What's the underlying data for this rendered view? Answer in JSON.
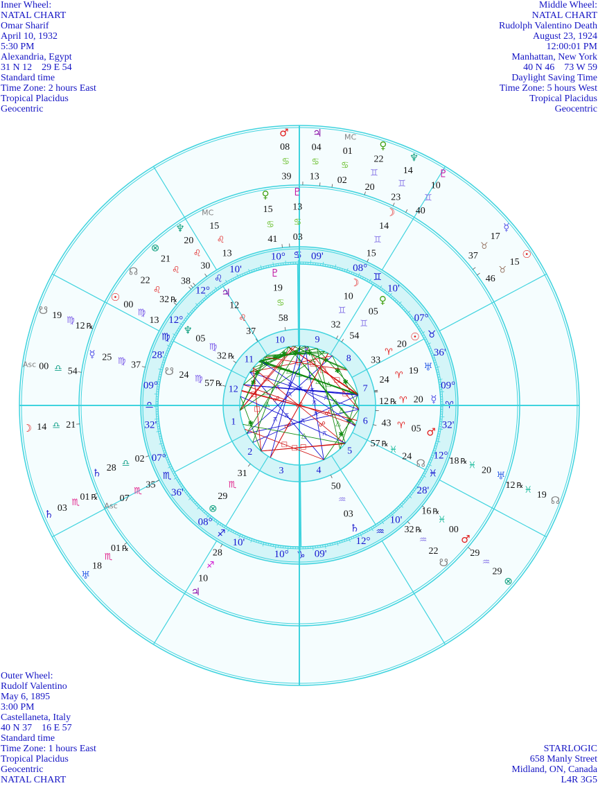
{
  "inner_info": [
    "Inner Wheel:",
    "NATAL CHART",
    "Omar Sharif",
    "April 10, 1932",
    "5:30 PM",
    "Alexandria, Egypt",
    "31 N 12    29 E 54",
    "Standard time",
    "Time Zone: 2 hours East",
    "Tropical Placidus",
    "Geocentric"
  ],
  "middle_info": [
    "Middle Wheel:",
    "NATAL CHART",
    "Rudolph Valentino Death",
    "August 23, 1924",
    "12:00:01 PM",
    "Manhattan, New York",
    "40 N 46    73 W 59",
    "Daylight Saving Time",
    "Time Zone: 5 hours West",
    "Tropical Placidus",
    "Geocentric"
  ],
  "outer_info": [
    "Outer Wheel:",
    "Rudolf Valentino",
    "May 6, 1895",
    "3:00 PM",
    "Castellaneta, Italy",
    "40 N 37    16 E 57",
    "Standard time",
    "Time Zone: 1 hours East",
    "Tropical Placidus",
    "Geocentric",
    "NATAL CHART"
  ],
  "publisher": [
    "STARLOGIC",
    "658 Manly Street",
    "Midland, ON, Canada",
    "L4R 3G5"
  ],
  "colors": {
    "line": "#3fd3de",
    "band": "#d4f5f8",
    "background": "#f5fdfe",
    "label": "#1414d0",
    "square": "#d01010",
    "trine": "#108a10",
    "quincunx": "#1010d0"
  },
  "signs": {
    "aries": {
      "glyph": "♈",
      "color": "#e01818"
    },
    "taurus": {
      "glyph": "♉",
      "color": "#9a7a6a"
    },
    "gemini": {
      "glyph": "♊",
      "color": "#8a7ae8"
    },
    "cancer": {
      "glyph": "♋",
      "color": "#6cc030"
    },
    "leo": {
      "glyph": "♌",
      "color": "#e02020"
    },
    "virgo": {
      "glyph": "♍",
      "color": "#7a5ae8"
    },
    "libra": {
      "glyph": "♎",
      "color": "#10a088"
    },
    "scorpio": {
      "glyph": "♏",
      "color": "#e0208a"
    },
    "sagittarius": {
      "glyph": "♐",
      "color": "#d010d0"
    },
    "capricorn": {
      "glyph": "♑",
      "color": "#1414d0"
    },
    "aquarius": {
      "glyph": "♒",
      "color": "#8a7ae8"
    },
    "pisces": {
      "glyph": "♓",
      "color": "#10b898"
    }
  },
  "sign_order": [
    "aries",
    "taurus",
    "gemini",
    "cancer",
    "leo",
    "virgo",
    "libra",
    "scorpio",
    "sagittarius",
    "capricorn",
    "aquarius",
    "pisces"
  ],
  "bodies": {
    "sun": {
      "glyph": "☉",
      "color": "#e01818"
    },
    "moon": {
      "glyph": "☽",
      "color": "#e01818"
    },
    "mercury": {
      "glyph": "☿",
      "color": "#5a5ae8"
    },
    "venus": {
      "glyph": "♀",
      "color": "#40a010"
    },
    "mars": {
      "glyph": "♂",
      "color": "#e01818"
    },
    "jupiter": {
      "glyph": "♃",
      "color": "#8a10a8"
    },
    "saturn": {
      "glyph": "♄",
      "color": "#2a2ad0"
    },
    "uranus": {
      "glyph": "♅",
      "color": "#3a6ae8"
    },
    "neptune": {
      "glyph": "♆",
      "color": "#10a080"
    },
    "pluto": {
      "glyph": "♇",
      "color": "#c010a0"
    },
    "north_node": {
      "glyph": "☊",
      "color": "#808080"
    },
    "south_node": {
      "glyph": "☋",
      "color": "#808080"
    },
    "fortune": {
      "glyph": "⊗",
      "color": "#10a080"
    },
    "mc": {
      "glyph": "MC",
      "color": "#808080"
    },
    "asc": {
      "glyph": "Asc",
      "color": "#808080"
    }
  },
  "house_cusps": [
    {
      "deg": "09°",
      "sign": "libra",
      "min": "32'"
    },
    {
      "deg": "07°",
      "sign": "scorpio",
      "min": "36'"
    },
    {
      "deg": "08°",
      "sign": "sagittarius",
      "min": "10'"
    },
    {
      "deg": "10°",
      "sign": "capricorn",
      "min": "09'"
    },
    {
      "deg": "12°",
      "sign": "aquarius",
      "min": "10'"
    },
    {
      "deg": "12°",
      "sign": "pisces",
      "min": "28'"
    },
    {
      "deg": "09°",
      "sign": "aries",
      "min": "32'"
    },
    {
      "deg": "07°",
      "sign": "taurus",
      "min": "36'"
    },
    {
      "deg": "08°",
      "sign": "gemini",
      "min": "10'"
    },
    {
      "deg": "10°",
      "sign": "cancer",
      "min": "09'"
    },
    {
      "deg": "12°",
      "sign": "leo",
      "min": "10'"
    },
    {
      "deg": "12°",
      "sign": "virgo",
      "min": "28'"
    }
  ],
  "house_numbers": [
    "1",
    "2",
    "3",
    "4",
    "5",
    "6",
    "7",
    "8",
    "9",
    "10",
    "11",
    "12"
  ],
  "wheels": {
    "inner": [
      {
        "body": "sun",
        "deg": "20",
        "sign": "aries",
        "min": "33",
        "retro": ""
      },
      {
        "body": "moon",
        "deg": "10",
        "sign": "gemini",
        "min": "32",
        "retro": ""
      },
      {
        "body": "mercury",
        "deg": "20",
        "sign": "aries",
        "min": "12",
        "retro": "℞"
      },
      {
        "body": "venus",
        "deg": "05",
        "sign": "gemini",
        "min": "54",
        "retro": ""
      },
      {
        "body": "mars",
        "deg": "05",
        "sign": "aries",
        "min": "43",
        "retro": ""
      },
      {
        "body": "jupiter",
        "deg": "12",
        "sign": "leo",
        "min": "37",
        "retro": ""
      },
      {
        "body": "saturn",
        "deg": "03",
        "sign": "aquarius",
        "min": "50",
        "retro": ""
      },
      {
        "body": "uranus",
        "deg": "19",
        "sign": "aries",
        "min": "24",
        "retro": ""
      },
      {
        "body": "neptune",
        "deg": "05",
        "sign": "virgo",
        "min": "32",
        "retro": "℞"
      },
      {
        "body": "pluto",
        "deg": "19",
        "sign": "cancer",
        "min": "58",
        "retro": ""
      },
      {
        "body": "north_node",
        "deg": "24",
        "sign": "pisces",
        "min": "57",
        "retro": "℞"
      },
      {
        "body": "south_node",
        "deg": "24",
        "sign": "virgo",
        "min": "57",
        "retro": "℞"
      },
      {
        "body": "fortune",
        "deg": "29",
        "sign": "scorpio",
        "min": "31",
        "retro": ""
      }
    ],
    "middle": [
      {
        "body": "sun",
        "deg": "00",
        "sign": "virgo",
        "min": "13",
        "retro": ""
      },
      {
        "body": "moon",
        "deg": "14",
        "sign": "gemini",
        "min": "15",
        "retro": ""
      },
      {
        "body": "mercury",
        "deg": "25",
        "sign": "virgo",
        "min": "37",
        "retro": ""
      },
      {
        "body": "venus",
        "deg": "15",
        "sign": "cancer",
        "min": "41",
        "retro": ""
      },
      {
        "body": "mars",
        "deg": "00",
        "sign": "pisces",
        "min": "16",
        "retro": "℞"
      },
      {
        "body": "jupiter",
        "deg": "10",
        "sign": "sagittarius",
        "min": "28",
        "retro": ""
      },
      {
        "body": "saturn",
        "deg": "28",
        "sign": "libra",
        "min": "02",
        "retro": ""
      },
      {
        "body": "uranus",
        "deg": "20",
        "sign": "pisces",
        "min": "18",
        "retro": "℞"
      },
      {
        "body": "neptune",
        "deg": "20",
        "sign": "leo",
        "min": "30",
        "retro": ""
      },
      {
        "body": "pluto",
        "deg": "13",
        "sign": "cancer",
        "min": "03",
        "retro": ""
      },
      {
        "body": "north_node",
        "deg": "22",
        "sign": "leo",
        "min": "32",
        "retro": "℞"
      },
      {
        "body": "south_node",
        "deg": "22",
        "sign": "aquarius",
        "min": "32",
        "retro": "℞"
      },
      {
        "body": "fortune",
        "deg": "21",
        "sign": "leo",
        "min": "38",
        "retro": ""
      },
      {
        "body": "mc",
        "deg": "15",
        "sign": "leo",
        "min": "13",
        "retro": ""
      },
      {
        "body": "asc",
        "deg": "07",
        "sign": "scorpio",
        "min": "35",
        "retro": ""
      }
    ],
    "outer": [
      {
        "body": "sun",
        "deg": "15",
        "sign": "taurus",
        "min": "46",
        "retro": ""
      },
      {
        "body": "moon",
        "deg": "14",
        "sign": "libra",
        "min": "21",
        "retro": ""
      },
      {
        "body": "mercury",
        "deg": "17",
        "sign": "taurus",
        "min": "37",
        "retro": ""
      },
      {
        "body": "venus",
        "deg": "22",
        "sign": "gemini",
        "min": "20",
        "retro": ""
      },
      {
        "body": "mars",
        "deg": "08",
        "sign": "cancer",
        "min": "39",
        "retro": ""
      },
      {
        "body": "jupiter",
        "deg": "04",
        "sign": "cancer",
        "min": "13",
        "retro": ""
      },
      {
        "body": "saturn",
        "deg": "03",
        "sign": "scorpio",
        "min": "01",
        "retro": "℞"
      },
      {
        "body": "uranus",
        "deg": "18",
        "sign": "scorpio",
        "min": "01",
        "retro": "℞"
      },
      {
        "body": "neptune",
        "deg": "14",
        "sign": "gemini",
        "min": "23",
        "retro": ""
      },
      {
        "body": "pluto",
        "deg": "10",
        "sign": "gemini",
        "min": "40",
        "retro": ""
      },
      {
        "body": "north_node",
        "deg": "19",
        "sign": "pisces",
        "min": "12",
        "retro": "℞"
      },
      {
        "body": "south_node",
        "deg": "19",
        "sign": "virgo",
        "min": "12",
        "retro": "℞"
      },
      {
        "body": "fortune",
        "deg": "29",
        "sign": "aquarius",
        "min": "29",
        "retro": ""
      },
      {
        "body": "mc",
        "deg": "01",
        "sign": "cancer",
        "min": "02",
        "retro": ""
      },
      {
        "body": "asc",
        "deg": "00",
        "sign": "libra",
        "min": "54",
        "retro": ""
      }
    ]
  },
  "aspect_markers": {
    "square": "□",
    "trine": "△",
    "sextile": "✱",
    "opposition": "☍",
    "quincunx": "⚻"
  }
}
